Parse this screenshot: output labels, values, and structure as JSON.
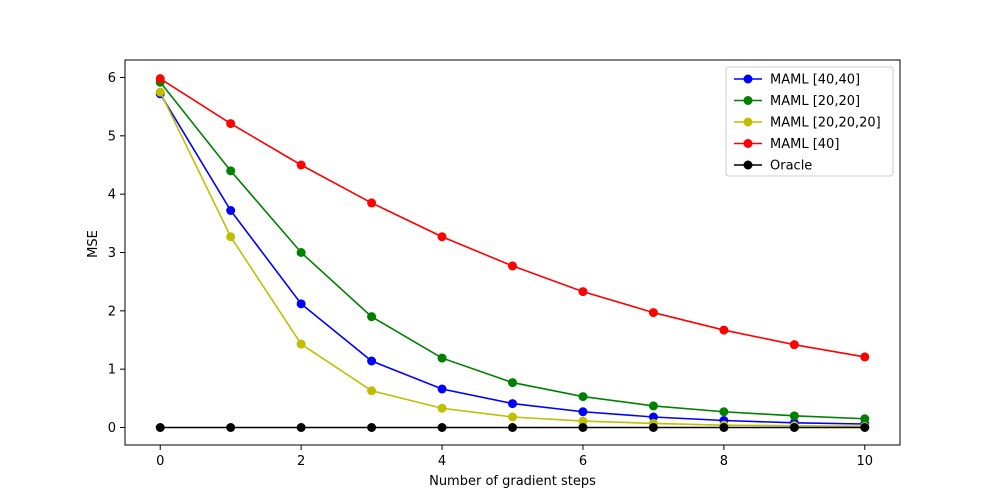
{
  "chart_data": {
    "type": "line",
    "title": "",
    "xlabel": "Number of gradient steps",
    "ylabel": "MSE",
    "xlim": [
      -0.5,
      10.5
    ],
    "ylim": [
      -0.3,
      6.3
    ],
    "xticks": [
      0,
      2,
      4,
      6,
      8,
      10
    ],
    "yticks": [
      0,
      1,
      2,
      3,
      4,
      5,
      6
    ],
    "grid": false,
    "legend_position": "top-right",
    "x": [
      0,
      1,
      2,
      3,
      4,
      5,
      6,
      7,
      8,
      9,
      10
    ],
    "series": [
      {
        "name": "MAML [40,40]",
        "color": "#0000ff",
        "values": [
          5.72,
          3.72,
          2.12,
          1.14,
          0.66,
          0.41,
          0.27,
          0.18,
          0.12,
          0.08,
          0.06
        ]
      },
      {
        "name": "MAML [20,20]",
        "color": "#008000",
        "values": [
          5.92,
          4.4,
          3.0,
          1.9,
          1.19,
          0.77,
          0.53,
          0.37,
          0.27,
          0.2,
          0.15
        ]
      },
      {
        "name": "MAML [20,20,20]",
        "color": "#bfbf00",
        "values": [
          5.75,
          3.27,
          1.43,
          0.63,
          0.33,
          0.18,
          0.11,
          0.07,
          0.04,
          0.03,
          0.02
        ]
      },
      {
        "name": "MAML [40]",
        "color": "#ff0000",
        "values": [
          5.98,
          5.21,
          4.5,
          3.85,
          3.27,
          2.77,
          2.33,
          1.97,
          1.67,
          1.42,
          1.21
        ]
      },
      {
        "name": "Oracle",
        "color": "#000000",
        "values": [
          0,
          0,
          0,
          0,
          0,
          0,
          0,
          0,
          0,
          0,
          0
        ]
      }
    ]
  }
}
